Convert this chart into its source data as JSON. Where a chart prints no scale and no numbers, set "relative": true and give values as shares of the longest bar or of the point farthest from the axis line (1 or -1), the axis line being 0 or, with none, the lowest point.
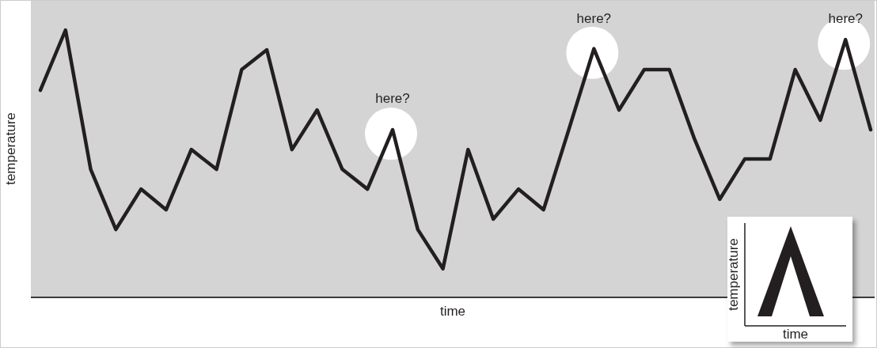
{
  "chart_data": {
    "type": "line",
    "relative": true,
    "xlabel": "time",
    "ylabel": "temperature",
    "line_style": "solid",
    "categories": [
      null,
      null,
      null,
      null,
      null,
      null,
      null,
      null,
      null,
      null,
      null,
      null,
      null,
      null,
      null,
      null,
      null,
      null,
      null,
      null,
      null,
      null,
      null,
      null,
      null,
      null,
      null,
      null,
      null,
      null,
      null,
      null,
      null,
      null
    ],
    "series": [
      {
        "color": "#231f20",
        "values": [
          0.775,
          1,
          0.479,
          0.254,
          0.405,
          0.328,
          0.553,
          0.479,
          0.852,
          0.926,
          0.553,
          0.701,
          0.479,
          0.405,
          0.627,
          0.254,
          0.107,
          0.553,
          0.293,
          0.405,
          0.328,
          0.627,
          0.93,
          0.701,
          0.852,
          0.852,
          0.592,
          0.367,
          0.518,
          0.518,
          0.852,
          0.663,
          0.964,
          0.627
        ]
      }
    ],
    "annotations": [
      {
        "text": "here?",
        "y": 0.627
      },
      {
        "text": "here?",
        "y": 0.93
      },
      {
        "text": "here?",
        "y": 0.964
      }
    ]
  }
}
